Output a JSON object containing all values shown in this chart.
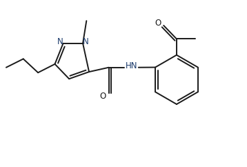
{
  "bg_color": "#ffffff",
  "bond_color": "#1a1a1a",
  "bond_width": 1.4,
  "font_size": 8.5,
  "label_color_N": "#1a3a6b",
  "label_color_O": "#1a1a1a",
  "figsize": [
    3.58,
    2.42
  ],
  "dpi": 100,
  "xlim": [
    0,
    9.5
  ],
  "ylim": [
    0,
    6.0
  ]
}
